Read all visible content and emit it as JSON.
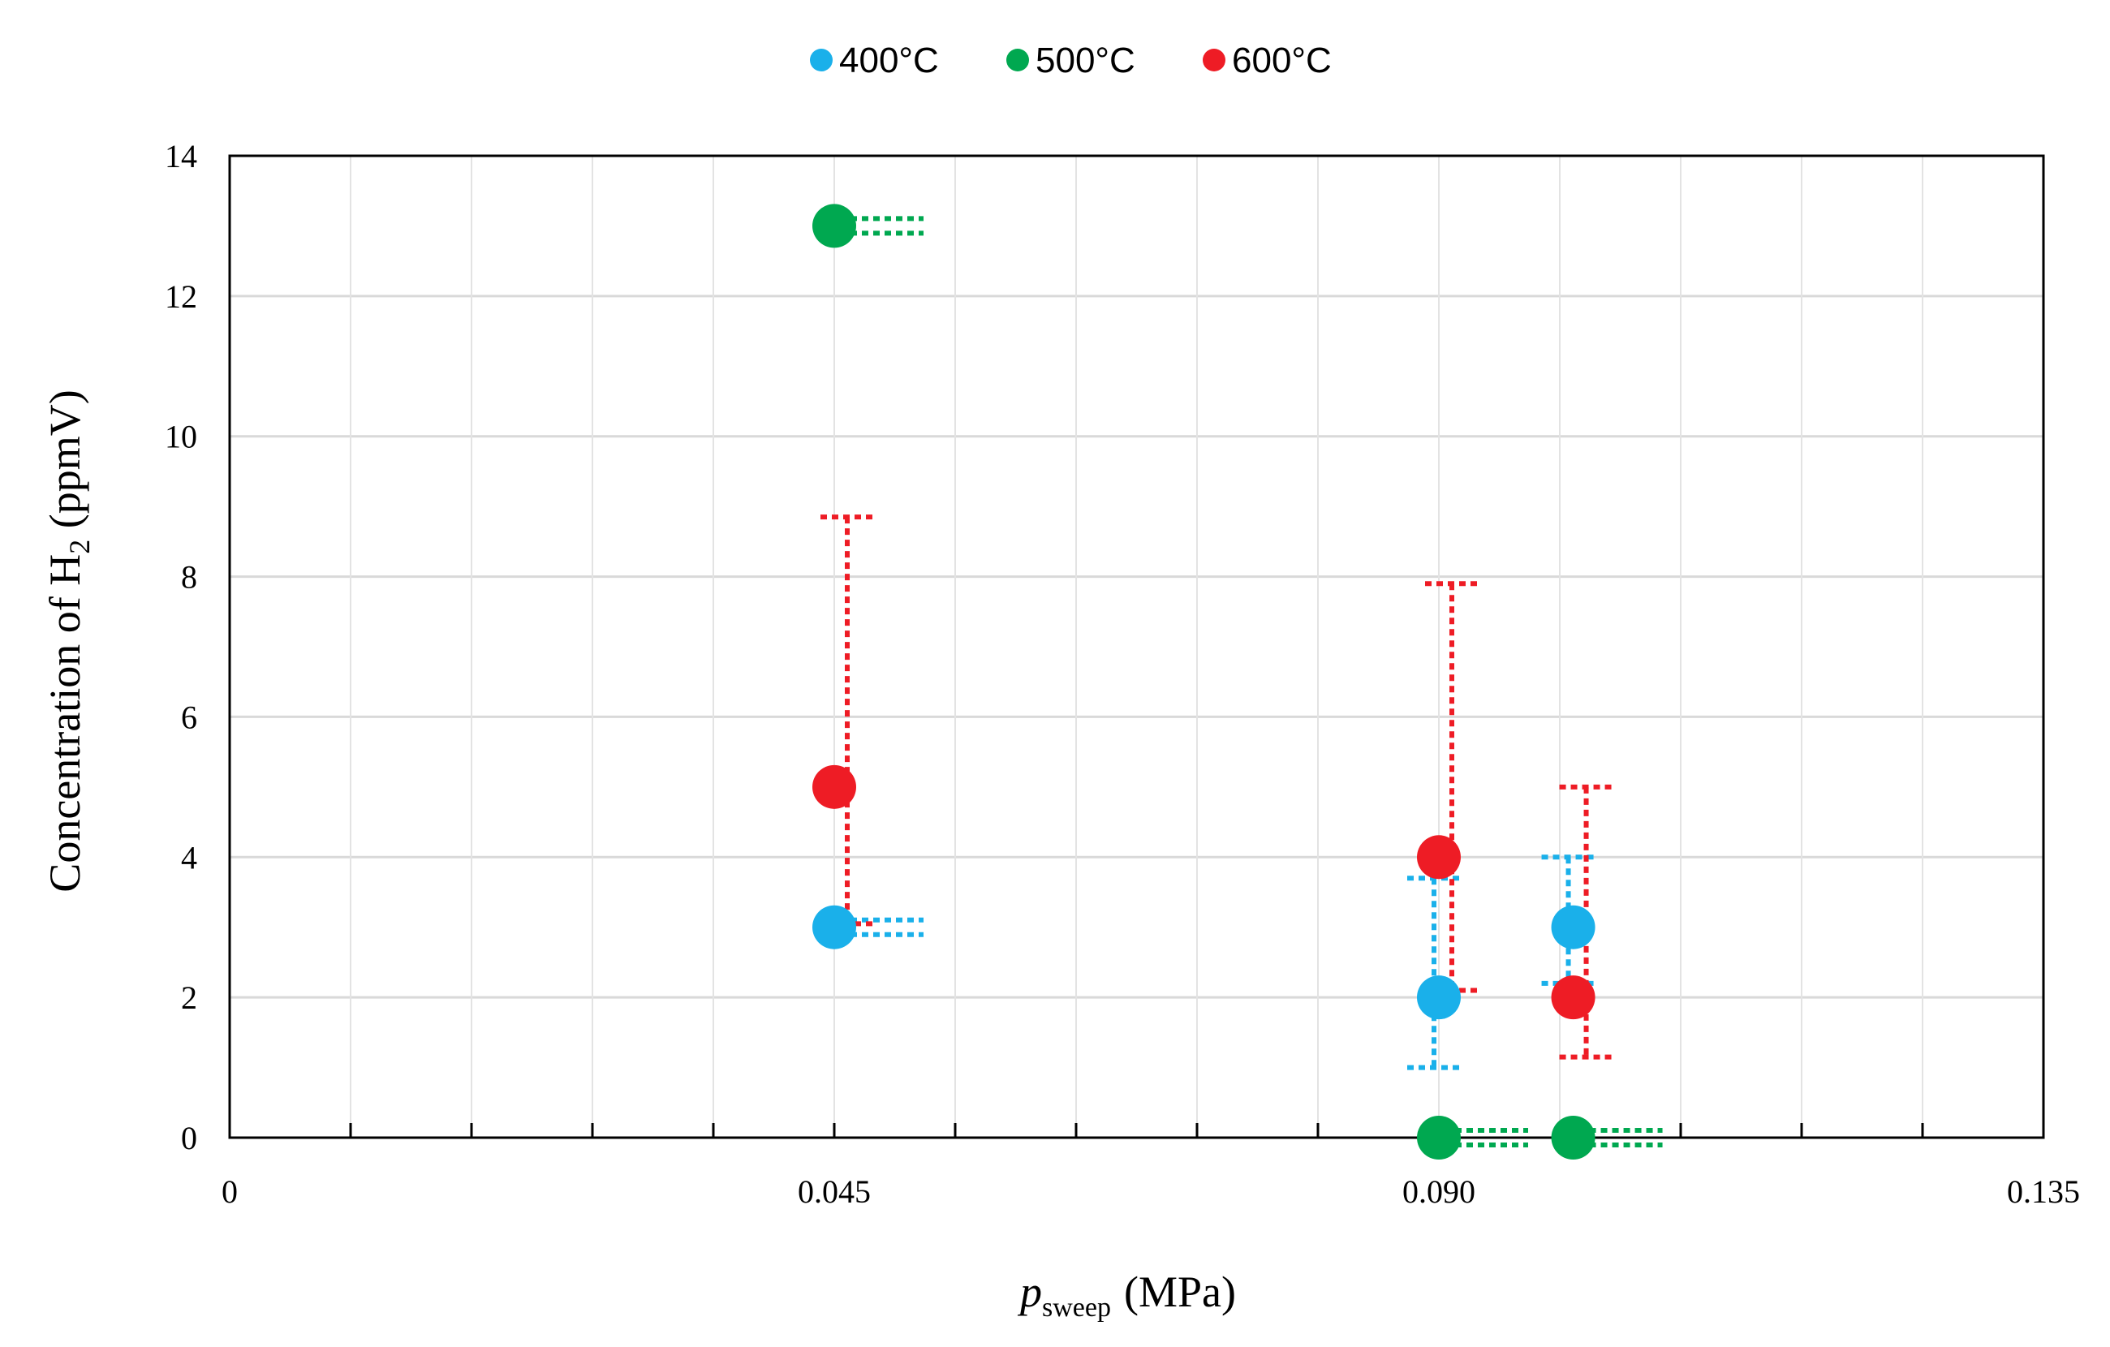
{
  "chart_data": {
    "type": "scatter",
    "title": "",
    "xlabel": {
      "main": "p",
      "subscript": "sweep",
      "unit": "(MPa)"
    },
    "ylabel": {
      "before_sub": "Concentration  of H",
      "subscript": "2",
      "after_sub": " (ppmV)"
    },
    "xlim": [
      0,
      0.135
    ],
    "ylim": [
      0,
      14
    ],
    "x_ticks": [
      0,
      0.045,
      0.09,
      0.135
    ],
    "x_tick_labels": [
      "0",
      "0.045",
      "0.090",
      "0.135"
    ],
    "x_minor_step": 0.009,
    "y_ticks": [
      0,
      2,
      4,
      6,
      8,
      10,
      12,
      14
    ],
    "y_tick_labels": [
      "0",
      "2",
      "4",
      "6",
      "8",
      "10",
      "12",
      "14"
    ],
    "grid": true,
    "legend_position": "top-center",
    "series": [
      {
        "name": "400°C",
        "color": "#1ab0ea",
        "points": [
          {
            "x": 0.045,
            "y": 3,
            "err_low": 0,
            "err_high": 0
          },
          {
            "x": 0.09,
            "y": 2,
            "err_low": 1,
            "err_high": 1.7
          },
          {
            "x": 0.1,
            "y": 3,
            "err_low": 0.8,
            "err_high": 1
          }
        ]
      },
      {
        "name": "500°C",
        "color": "#00a850",
        "points": [
          {
            "x": 0.045,
            "y": 13,
            "err_low": 0,
            "err_high": 0
          },
          {
            "x": 0.09,
            "y": 0,
            "err_low": 0,
            "err_high": 0
          },
          {
            "x": 0.1,
            "y": 0,
            "err_low": 0,
            "err_high": 0
          }
        ]
      },
      {
        "name": "600°C",
        "color": "#ee1c25",
        "points": [
          {
            "x": 0.045,
            "y": 5,
            "err_low": 1.95,
            "err_high": 3.85
          },
          {
            "x": 0.09,
            "y": 4,
            "err_low": 1.9,
            "err_high": 3.9
          },
          {
            "x": 0.1,
            "y": 2,
            "err_low": 0.85,
            "err_high": 3
          }
        ]
      }
    ]
  }
}
